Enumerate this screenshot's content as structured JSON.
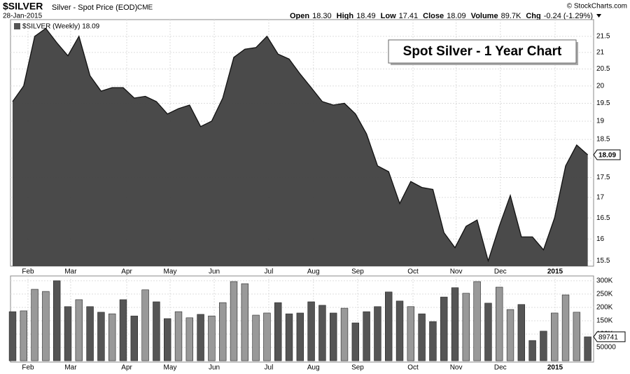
{
  "header": {
    "symbol": "$SILVER",
    "description": "Silver - Spot Price (EOD)",
    "exchange": "CME",
    "date": "28-Jan-2015",
    "copyright": "© StockCharts.com",
    "quote": [
      {
        "label": "Open",
        "value": "18.30"
      },
      {
        "label": "High",
        "value": "18.49"
      },
      {
        "label": "Low",
        "value": "17.41"
      },
      {
        "label": "Close",
        "value": "18.09"
      },
      {
        "label": "Volume",
        "value": "89.7K"
      },
      {
        "label": "Chg",
        "value": "-0.24 (-1.29%)"
      }
    ]
  },
  "chart_data": [
    {
      "type": "area",
      "legend": "$SILVER (Weekly) 18.09",
      "annotation": "Spot Silver - 1 Year Chart",
      "log_scale": true,
      "grid": true,
      "color": "#404040",
      "series": [
        {
          "name": "$SILVER",
          "color": "#404040",
          "values": [
            19.55,
            20.0,
            21.5,
            21.75,
            21.3,
            20.9,
            21.5,
            20.3,
            19.85,
            19.95,
            19.95,
            19.65,
            19.7,
            19.55,
            19.2,
            19.35,
            19.45,
            18.85,
            19.0,
            19.65,
            20.85,
            21.1,
            21.15,
            21.5,
            20.95,
            20.8,
            20.35,
            19.95,
            19.55,
            19.45,
            19.5,
            19.2,
            18.65,
            17.8,
            17.65,
            16.85,
            17.4,
            17.25,
            17.2,
            16.15,
            15.8,
            16.3,
            16.45,
            15.5,
            16.3,
            17.05,
            16.05,
            16.05,
            15.75,
            16.5,
            17.8,
            18.35,
            18.09
          ]
        }
      ],
      "last_label": "18.09",
      "xlim": [
        -0.19,
        52.53
      ],
      "xticks": [
        {
          "value": 1.39,
          "label": "Feb"
        },
        {
          "value": 5.25,
          "label": "Mar"
        },
        {
          "value": 10.32,
          "label": "Apr"
        },
        {
          "value": 14.24,
          "label": "May"
        },
        {
          "value": 18.23,
          "label": "Jun"
        },
        {
          "value": 23.16,
          "label": "Jul"
        },
        {
          "value": 27.2,
          "label": "Aug"
        },
        {
          "value": 31.2,
          "label": "Sep"
        },
        {
          "value": 36.2,
          "label": "Oct"
        },
        {
          "value": 40.1,
          "label": "Nov"
        },
        {
          "value": 44.1,
          "label": "Dec"
        },
        {
          "value": 49.05,
          "label": "2015"
        }
      ],
      "ylim": [
        15.38,
        22.03
      ],
      "yticks": [
        15.5,
        16.0,
        16.5,
        17.0,
        17.5,
        18.0,
        18.5,
        19.0,
        19.5,
        20.0,
        20.5,
        21.0,
        21.5
      ]
    },
    {
      "type": "bar",
      "up_color": "#999999",
      "down_color": "#555555",
      "grid": true,
      "values": [
        184000,
        187000,
        268000,
        260000,
        300000,
        203000,
        229000,
        203000,
        182000,
        176000,
        229000,
        168000,
        266000,
        221000,
        158000,
        184000,
        161000,
        174000,
        168000,
        218000,
        297000,
        289000,
        171000,
        179000,
        218000,
        176000,
        179000,
        221000,
        208000,
        179000,
        197000,
        142000,
        184000,
        203000,
        258000,
        224000,
        203000,
        176000,
        147000,
        239000,
        274000,
        253000,
        297000,
        216000,
        276000,
        192000,
        211000,
        76000,
        111000,
        179000,
        247000,
        182000,
        89741
      ],
      "last_label": "89741",
      "xlim": [
        -0.19,
        52.53
      ],
      "xticks": [
        {
          "value": 1.39,
          "label": "Feb"
        },
        {
          "value": 5.25,
          "label": "Mar"
        },
        {
          "value": 10.32,
          "label": "Apr"
        },
        {
          "value": 14.24,
          "label": "May"
        },
        {
          "value": 18.23,
          "label": "Jun"
        },
        {
          "value": 23.16,
          "label": "Jul"
        },
        {
          "value": 27.2,
          "label": "Aug"
        },
        {
          "value": 31.2,
          "label": "Sep"
        },
        {
          "value": 36.2,
          "label": "Oct"
        },
        {
          "value": 40.1,
          "label": "Nov"
        },
        {
          "value": 44.1,
          "label": "Dec"
        },
        {
          "value": 49.05,
          "label": "2015"
        }
      ],
      "ylim": [
        -5000,
        318000
      ],
      "yticks": [
        50000,
        {
          "value": 100000,
          "label": "100K"
        },
        {
          "value": 150000,
          "label": "150K"
        },
        {
          "value": 200000,
          "label": "200K"
        },
        {
          "value": 250000,
          "label": "250K"
        },
        {
          "value": 300000,
          "label": "300K"
        }
      ]
    }
  ]
}
